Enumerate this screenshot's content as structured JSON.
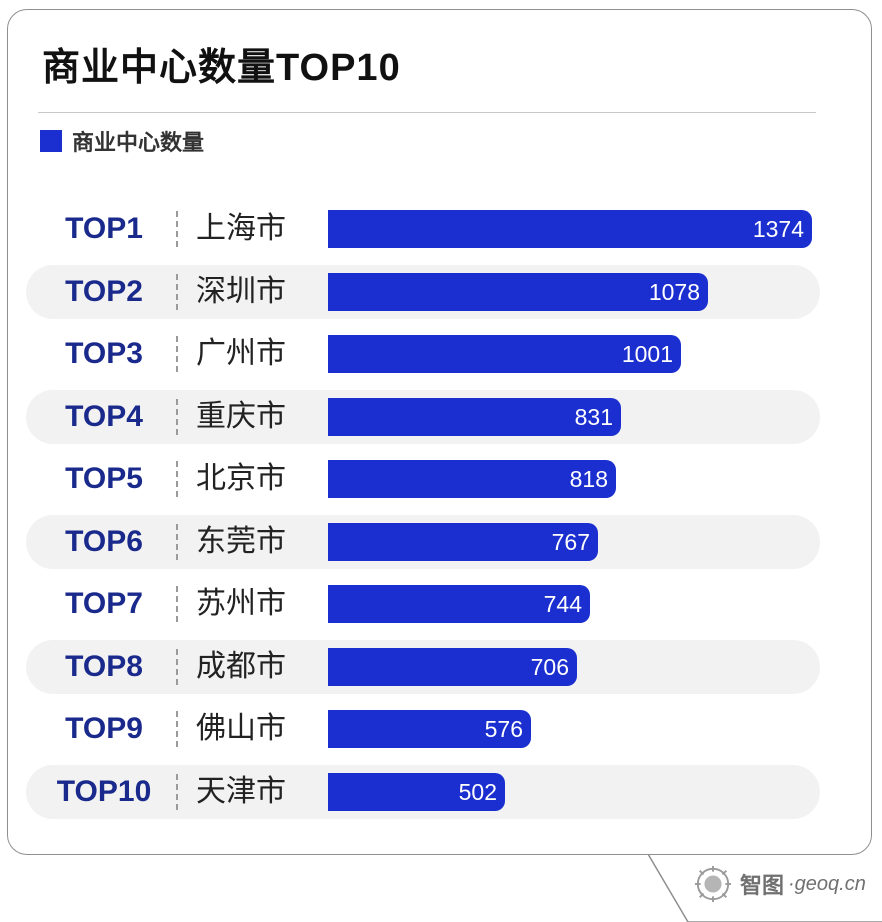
{
  "title": "商业中心数量TOP10",
  "legend": {
    "label": "商业中心数量",
    "color": "#1b2fd0"
  },
  "colors": {
    "bar": "#1b2fd0",
    "rank": "#1a2a8c",
    "stripe": "#f2f2f2"
  },
  "brand": {
    "name": "智图",
    "sub": "·geoq.cn",
    "icon": "compass-logo-icon"
  },
  "chart_data": {
    "type": "bar",
    "orientation": "horizontal",
    "title": "商业中心数量TOP10",
    "categories": [
      "上海市",
      "深圳市",
      "广州市",
      "重庆市",
      "北京市",
      "东莞市",
      "苏州市",
      "成都市",
      "佛山市",
      "天津市"
    ],
    "ranks": [
      "TOP1",
      "TOP2",
      "TOP3",
      "TOP4",
      "TOP5",
      "TOP6",
      "TOP7",
      "TOP8",
      "TOP9",
      "TOP10"
    ],
    "series": [
      {
        "name": "商业中心数量",
        "values": [
          1374,
          1078,
          1001,
          831,
          818,
          767,
          744,
          706,
          576,
          502
        ]
      }
    ],
    "xlim": [
      0,
      1374
    ],
    "grid": false,
    "legend_position": "top-left"
  }
}
